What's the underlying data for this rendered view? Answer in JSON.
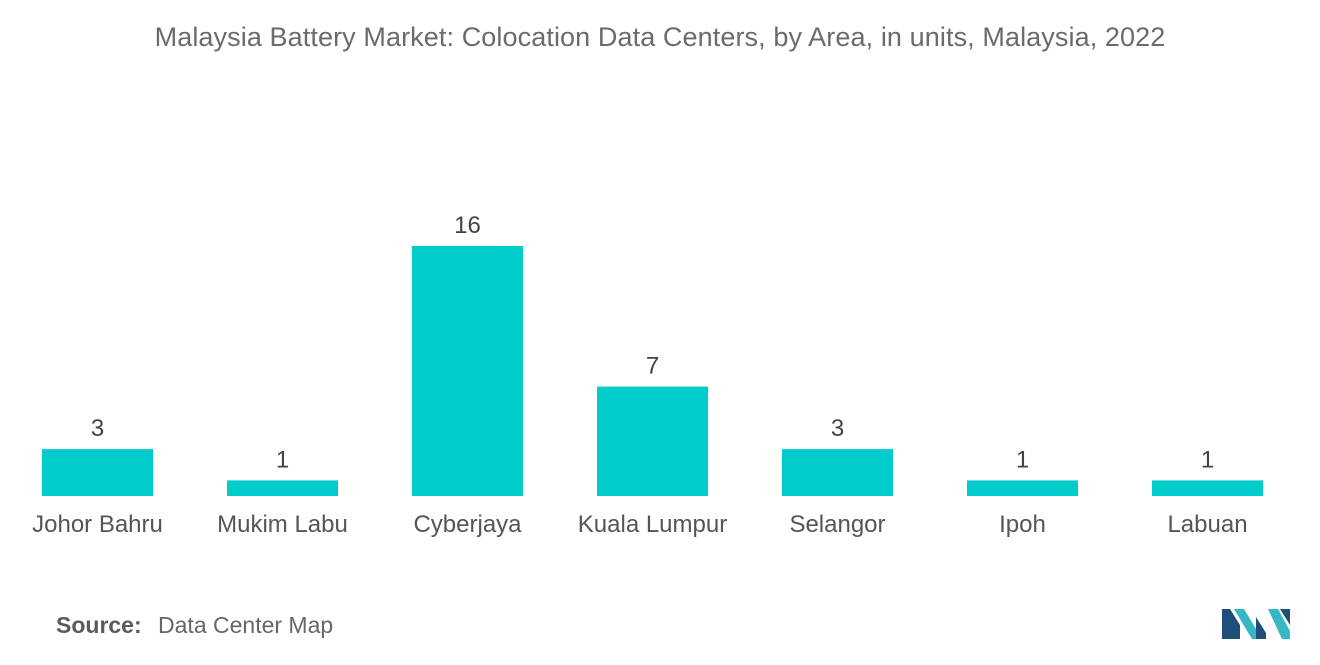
{
  "chart_data": {
    "type": "bar",
    "title": "Malaysia Battery Market: Colocation Data Centers, by Area, in units, Malaysia, 2022",
    "categories": [
      "Johor Bahru",
      "Mukim Labu",
      "Cyberjaya",
      "Kuala Lumpur",
      "Selangor",
      "Ipoh",
      "Labuan"
    ],
    "values": [
      3,
      1,
      16,
      7,
      3,
      1,
      1
    ],
    "data_labels": [
      "3",
      "1",
      "16",
      "7",
      "3",
      "1",
      "1"
    ],
    "ylim": [
      0,
      16
    ],
    "grid": false,
    "legend": "none",
    "bar_color": "#00cccc"
  },
  "source": {
    "label": "Source:",
    "text": "Data Center Map"
  },
  "logo": {
    "icon": "mordor-intelligence-logo-icon",
    "colors": [
      "#1f4e79",
      "#35b7c4"
    ]
  }
}
